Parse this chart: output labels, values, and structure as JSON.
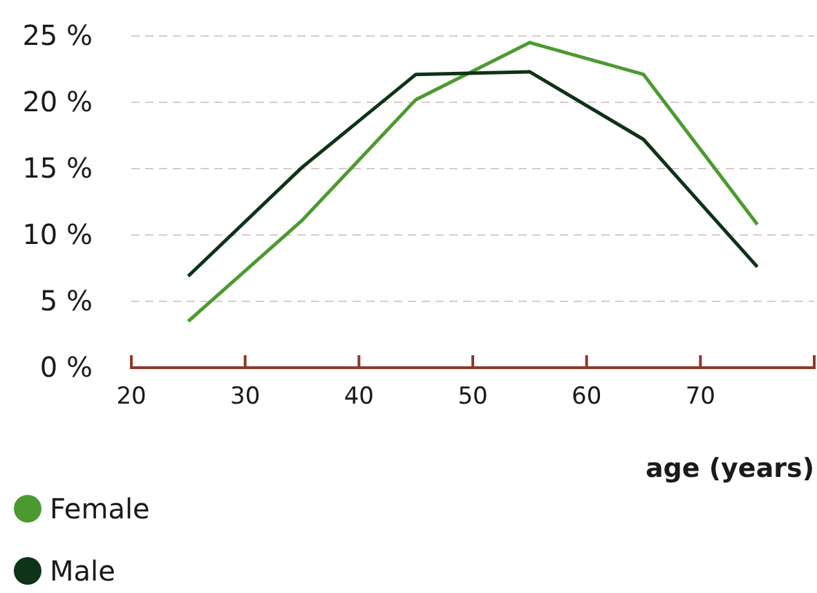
{
  "chart_data": {
    "type": "line",
    "xlabel": "age (years)",
    "x": [
      25,
      35,
      45,
      55,
      65,
      75
    ],
    "series": [
      {
        "name": "Female",
        "color": "#4c9a2f",
        "values": [
          3.5,
          11.1,
          20.2,
          24.5,
          22.1,
          10.8
        ]
      },
      {
        "name": "Male",
        "color": "#0e3317",
        "values": [
          6.9,
          15.1,
          22.1,
          22.3,
          17.2,
          7.6
        ]
      }
    ],
    "xlim": [
      20,
      80
    ],
    "xticks": [
      20,
      30,
      40,
      50,
      60,
      70,
      {
        "value": 80,
        "label": null
      }
    ],
    "ylim": [
      0,
      25
    ],
    "yticks": [
      {
        "value": 0,
        "label": "0 %"
      },
      {
        "value": 5,
        "label": "5 %"
      },
      {
        "value": 10,
        "label": "10 %"
      },
      {
        "value": 15,
        "label": "15 %"
      },
      {
        "value": 20,
        "label": "20 %"
      },
      {
        "value": 25,
        "label": "25 %"
      }
    ],
    "grid": "y",
    "legend": "bottom left",
    "marker": "none",
    "line_style": "solid"
  }
}
